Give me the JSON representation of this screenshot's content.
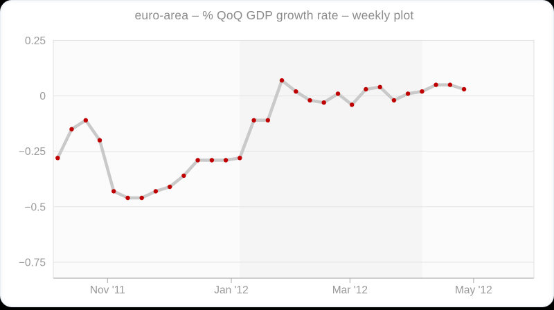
{
  "page": {
    "background_color": "#000000",
    "card_background": "#ffffff"
  },
  "chart_data": {
    "type": "line",
    "title": "euro-area – % QoQ GDP growth rate – weekly plot",
    "xlabel": "",
    "ylabel": "",
    "x_unit": "weekly observations (index 0..29)",
    "series": [
      {
        "name": "% QoQ GDP growth rate",
        "values": [
          -0.28,
          -0.15,
          -0.11,
          -0.2,
          -0.43,
          -0.46,
          -0.46,
          -0.43,
          -0.41,
          -0.36,
          -0.29,
          -0.29,
          -0.29,
          -0.28,
          -0.11,
          -0.11,
          0.07,
          0.02,
          -0.02,
          -0.03,
          0.01,
          -0.04,
          0.03,
          0.04,
          -0.02,
          0.01,
          0.02,
          0.05,
          0.05,
          0.03
        ]
      }
    ],
    "x_ticks": [
      {
        "label": "Nov '11",
        "position_week": 3.56
      },
      {
        "label": "Jan '12",
        "position_week": 12.39
      },
      {
        "label": "Mar '12",
        "position_week": 20.86
      },
      {
        "label": "May '12",
        "position_week": 29.68
      }
    ],
    "y_ticks": [
      {
        "value": 0.25,
        "label": "0.25"
      },
      {
        "value": 0,
        "label": "0"
      },
      {
        "value": -0.25,
        "label": "−0.25"
      },
      {
        "value": -0.5,
        "label": "−0.5"
      },
      {
        "value": -0.75,
        "label": "−0.75"
      }
    ],
    "ylim": [
      -0.82,
      0.25
    ],
    "grid": true,
    "legend": false,
    "background_bands": {
      "boundaries_weeks": [
        13,
        26
      ],
      "note": "alternating quarter shading: light / darker / light"
    },
    "colors": {
      "line": "#c9c9c9",
      "marker": "#c00000",
      "grid": "#e4e4e4",
      "plot_border": "#e0e0e0",
      "axis_line": "#b3b3b3",
      "tick_label": "#999999",
      "title": "#8c8c8c",
      "band_light": "#fbfbfb",
      "band_dark": "#f4f5f4"
    },
    "marker_radius": 3.2,
    "line_width": 4.5
  }
}
